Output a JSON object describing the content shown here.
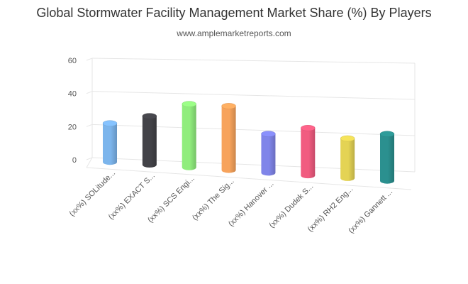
{
  "header": {
    "title": "Global Stormwater Facility Management Market Share (%) By Players",
    "subtitle": "www.amplemarketreports.com"
  },
  "chart_data": {
    "type": "bar",
    "title": "Global Stormwater Facility Management Market Share (%) By Players",
    "subtitle": "www.amplemarketreports.com",
    "xlabel": "",
    "ylabel": "",
    "ylim": [
      0,
      60
    ],
    "yticks": [
      0,
      20,
      40,
      60
    ],
    "grid": true,
    "categories": [
      "(xx%) SOLitude...",
      "(xx%) EXACT S...",
      "(xx%) SCS Engi...",
      "(xx%) The Sig...",
      "(xx%) Hanover ...",
      "(xx%) Dudek S...",
      "(xx%) RH2 Eng...",
      "(xx%) Gannett ..."
    ],
    "values": [
      25,
      31,
      40,
      40,
      24,
      29,
      24,
      28
    ],
    "colors": [
      "#7cb5ec",
      "#434348",
      "#90ed7d",
      "#f7a35c",
      "#8085e9",
      "#f15c80",
      "#e4d354",
      "#2b908f"
    ]
  }
}
